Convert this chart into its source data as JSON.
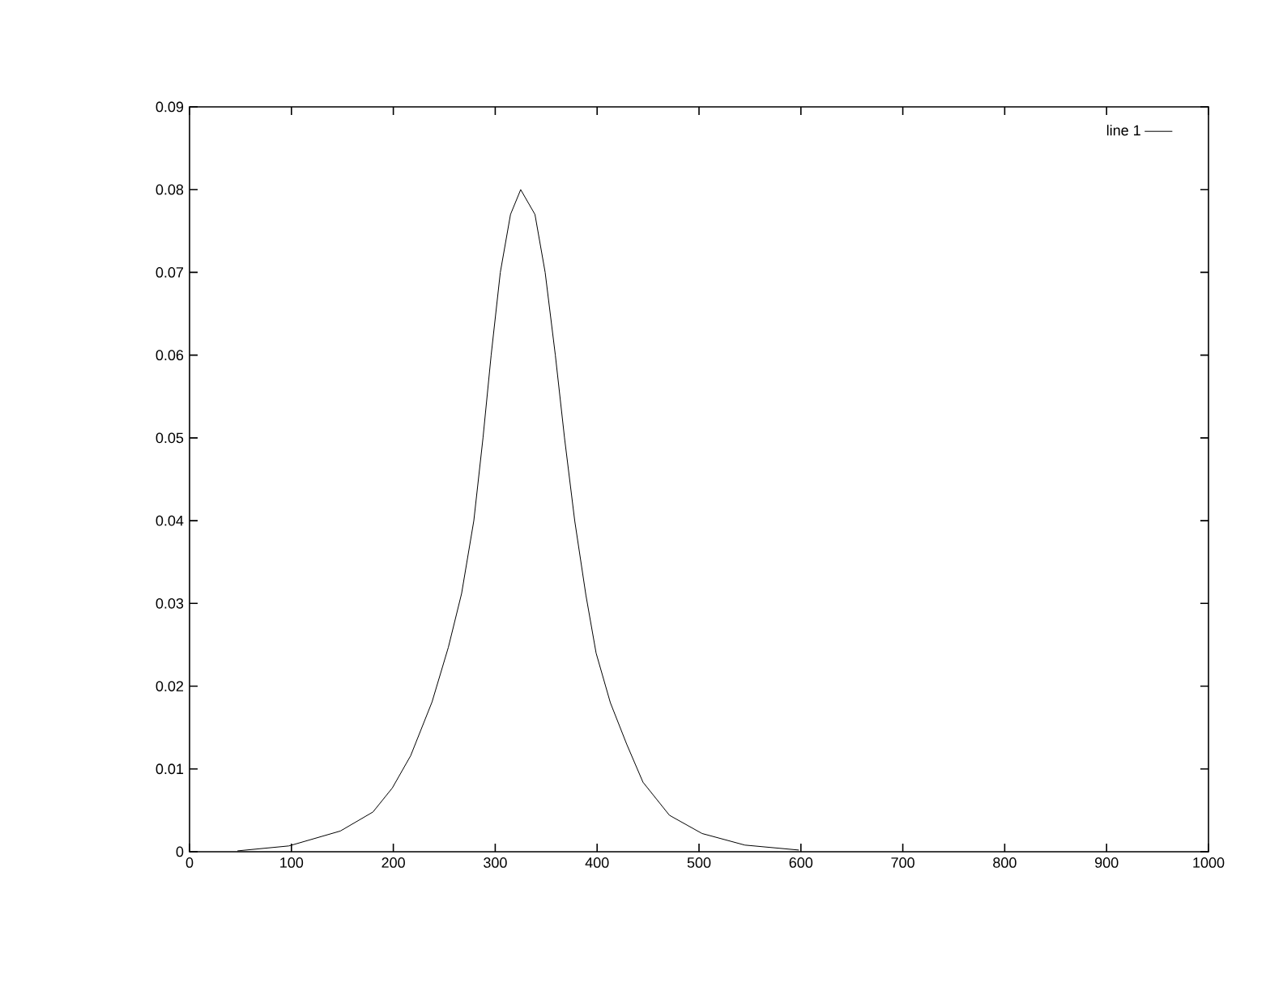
{
  "chart_data": {
    "type": "line",
    "xlim": [
      0,
      1000
    ],
    "ylim": [
      0,
      0.09
    ],
    "xticks": [
      0,
      100,
      200,
      300,
      400,
      500,
      600,
      700,
      800,
      900,
      1000
    ],
    "yticks": [
      0,
      0.01,
      0.02,
      0.03,
      0.04,
      0.05,
      0.06,
      0.07,
      0.08,
      0.09
    ],
    "grid": false,
    "legend": "top right",
    "marker": "none",
    "line_style": "solid",
    "series": [
      {
        "name": "line 1",
        "color": "#000000",
        "x": [
          47,
          97.5,
          148,
          180,
          199,
          217,
          238,
          254,
          267,
          279,
          288,
          296,
          305,
          315,
          325,
          339,
          349,
          359,
          368,
          378,
          389,
          399,
          413,
          429,
          445,
          471,
          503,
          545,
          598
        ],
        "values": [
          0.0001,
          0.0007,
          0.0025,
          0.0048,
          0.0077,
          0.0116,
          0.0181,
          0.0247,
          0.0312,
          0.04,
          0.05,
          0.06,
          0.07,
          0.077,
          0.08,
          0.077,
          0.07,
          0.06,
          0.05,
          0.04,
          0.031,
          0.024,
          0.018,
          0.013,
          0.0084,
          0.0044,
          0.0022,
          0.0008,
          0.0002
        ]
      }
    ]
  }
}
